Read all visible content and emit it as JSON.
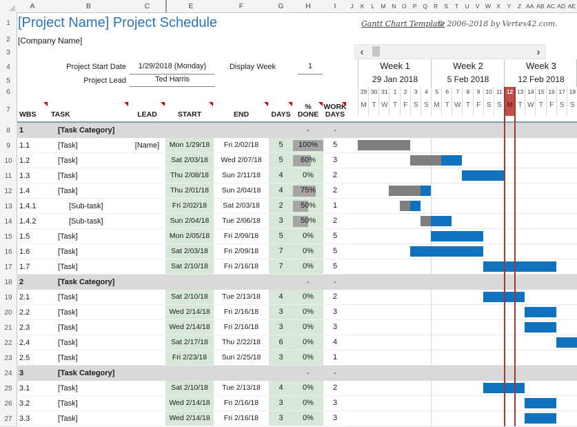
{
  "title": "[Project Name] Project Schedule",
  "company": "[Company Name]",
  "template_link": "Gantt Chart Template",
  "copyright": "© 2006-2018 by Vertex42.com.",
  "fields": {
    "start_label": "Project Start Date",
    "start_value": "1/29/2018 (Monday)",
    "lead_label": "Project Lead",
    "lead_value": "Ted Harris",
    "display_week_label": "Display Week",
    "display_week_value": "1"
  },
  "scrollbar": {
    "left_arrow": "‹",
    "right_arrow": "›"
  },
  "sheet": {
    "col_headers": [
      "A",
      "B",
      "C",
      "E",
      "F",
      "G",
      "H",
      "I"
    ],
    "day_col_headers": [
      "J",
      "K",
      "L",
      "M",
      "N",
      "O",
      "P",
      "Q",
      "R",
      "S",
      "T",
      "U",
      "V",
      "W",
      "X",
      "Y",
      "Z",
      "AA",
      "AB",
      "AC",
      "AD",
      "AE"
    ],
    "row_numbers": [
      1,
      2,
      3,
      4,
      5,
      6,
      7,
      8,
      9,
      10,
      11,
      12,
      13,
      14,
      15,
      16,
      17,
      18,
      19,
      20,
      21,
      22,
      23,
      24,
      25,
      26,
      27
    ]
  },
  "table": {
    "columns": [
      "WBS",
      "TASK",
      "LEAD",
      "START",
      "END",
      "DAYS",
      "% DONE",
      "WORK DAYS"
    ]
  },
  "weeks": [
    {
      "label": "Week 1",
      "date": "29 Jan 2018"
    },
    {
      "label": "Week 2",
      "date": "5 Feb 2018"
    },
    {
      "label": "Week 3",
      "date": "12 Feb 2018"
    }
  ],
  "calendar": {
    "day_numbers": [
      29,
      30,
      31,
      1,
      2,
      3,
      4,
      5,
      6,
      7,
      8,
      9,
      10,
      11,
      12,
      13,
      14,
      15,
      16,
      17,
      18
    ],
    "day_letters": [
      "M",
      "T",
      "W",
      "T",
      "F",
      "S",
      "S",
      "M",
      "T",
      "W",
      "T",
      "F",
      "S",
      "S",
      "M",
      "T",
      "W",
      "T",
      "F",
      "S",
      "S"
    ],
    "today_index": 14
  },
  "tasks": [
    {
      "row": 8,
      "wbs": "1",
      "name": "[Task Category]",
      "type": "category",
      "lead": "",
      "start": "",
      "end": "",
      "days": "",
      "done": "-",
      "workdays": "-"
    },
    {
      "row": 9,
      "wbs": "1.1",
      "name": "[Task]",
      "type": "task",
      "lead": "[Name]",
      "start": "Mon 1/29/18",
      "end": "Fri 2/02/18",
      "days": "5",
      "done": "100%",
      "workdays": "5",
      "bar": {
        "start": 0,
        "len": 5,
        "frac": 1
      }
    },
    {
      "row": 10,
      "wbs": "1.2",
      "name": "[Task]",
      "type": "task",
      "lead": "",
      "start": "Sat 2/03/18",
      "end": "Wed 2/07/18",
      "days": "5",
      "done": "60%",
      "workdays": "3",
      "bar": {
        "start": 5,
        "len": 5,
        "frac": 0.6
      }
    },
    {
      "row": 11,
      "wbs": "1.3",
      "name": "[Task]",
      "type": "task",
      "lead": "",
      "start": "Thu 2/08/18",
      "end": "Sun 2/11/18",
      "days": "4",
      "done": "0%",
      "workdays": "2",
      "bar": {
        "start": 10,
        "len": 4,
        "frac": 0
      }
    },
    {
      "row": 12,
      "wbs": "1.4",
      "name": "[Task]",
      "type": "task",
      "lead": "",
      "start": "Thu 2/01/18",
      "end": "Sun 2/04/18",
      "days": "4",
      "done": "75%",
      "workdays": "2",
      "bar": {
        "start": 3,
        "len": 4,
        "frac": 0.75
      }
    },
    {
      "row": 13,
      "wbs": "1.4.1",
      "name": "[Sub-task]",
      "type": "subtask",
      "lead": "",
      "start": "Fri 2/02/18",
      "end": "Sat 2/03/18",
      "days": "2",
      "done": "50%",
      "workdays": "1",
      "bar": {
        "start": 4,
        "len": 2,
        "frac": 0.5
      }
    },
    {
      "row": 14,
      "wbs": "1.4.2",
      "name": "[Sub-task]",
      "type": "subtask",
      "lead": "",
      "start": "Sun 2/04/18",
      "end": "Tue 2/06/18",
      "days": "3",
      "done": "50%",
      "workdays": "2",
      "bar": {
        "start": 6,
        "len": 3,
        "frac": 0.33
      }
    },
    {
      "row": 15,
      "wbs": "1.5",
      "name": "[Task]",
      "type": "task",
      "lead": "",
      "start": "Mon 2/05/18",
      "end": "Fri 2/09/18",
      "days": "5",
      "done": "0%",
      "workdays": "5",
      "bar": {
        "start": 7,
        "len": 5,
        "frac": 0
      }
    },
    {
      "row": 16,
      "wbs": "1.6",
      "name": "[Task]",
      "type": "task",
      "lead": "",
      "start": "Sat 2/03/18",
      "end": "Fri 2/09/18",
      "days": "7",
      "done": "0%",
      "workdays": "5",
      "bar": {
        "start": 5,
        "len": 7,
        "frac": 0
      }
    },
    {
      "row": 17,
      "wbs": "1.7",
      "name": "[Task]",
      "type": "task",
      "lead": "",
      "start": "Sat 2/10/18",
      "end": "Fri 2/16/18",
      "days": "7",
      "done": "0%",
      "workdays": "5",
      "bar": {
        "start": 12,
        "len": 7,
        "frac": 0
      }
    },
    {
      "row": 18,
      "wbs": "2",
      "name": "[Task Category]",
      "type": "category",
      "lead": "",
      "start": "",
      "end": "",
      "days": "",
      "done": "-",
      "workdays": "-"
    },
    {
      "row": 19,
      "wbs": "2.1",
      "name": "[Task]",
      "type": "task",
      "lead": "",
      "start": "Sat 2/10/18",
      "end": "Tue 2/13/18",
      "days": "4",
      "done": "0%",
      "workdays": "2",
      "bar": {
        "start": 12,
        "len": 4,
        "frac": 0
      }
    },
    {
      "row": 20,
      "wbs": "2.2",
      "name": "[Task]",
      "type": "task",
      "lead": "",
      "start": "Wed 2/14/18",
      "end": "Fri 2/16/18",
      "days": "3",
      "done": "0%",
      "workdays": "3",
      "bar": {
        "start": 16,
        "len": 3,
        "frac": 0
      }
    },
    {
      "row": 21,
      "wbs": "2.3",
      "name": "[Task]",
      "type": "task",
      "lead": "",
      "start": "Wed 2/14/18",
      "end": "Fri 2/16/18",
      "days": "3",
      "done": "0%",
      "workdays": "3",
      "bar": {
        "start": 16,
        "len": 3,
        "frac": 0
      }
    },
    {
      "row": 22,
      "wbs": "2.4",
      "name": "[Task]",
      "type": "task",
      "lead": "",
      "start": "Sat 2/17/18",
      "end": "Thu 2/22/18",
      "days": "6",
      "done": "0%",
      "workdays": "4",
      "bar": {
        "start": 19,
        "len": 6,
        "frac": 0
      }
    },
    {
      "row": 23,
      "wbs": "2.5",
      "name": "[Task]",
      "type": "task",
      "lead": "",
      "start": "Fri 2/23/18",
      "end": "Sun 2/25/18",
      "days": "3",
      "done": "0%",
      "workdays": "1",
      "bar": {
        "start": 25,
        "len": 3,
        "frac": 0
      }
    },
    {
      "row": 24,
      "wbs": "3",
      "name": "[Task Category]",
      "type": "category",
      "lead": "",
      "start": "",
      "end": "",
      "days": "",
      "done": "-",
      "workdays": "-"
    },
    {
      "row": 25,
      "wbs": "3.1",
      "name": "[Task]",
      "type": "task",
      "lead": "",
      "start": "Sat 2/10/18",
      "end": "Tue 2/13/18",
      "days": "4",
      "done": "0%",
      "workdays": "2",
      "bar": {
        "start": 12,
        "len": 4,
        "frac": 0
      }
    },
    {
      "row": 26,
      "wbs": "3.2",
      "name": "[Task]",
      "type": "task",
      "lead": "",
      "start": "Wed 2/14/18",
      "end": "Fri 2/16/18",
      "days": "3",
      "done": "0%",
      "workdays": "3",
      "bar": {
        "start": 16,
        "len": 3,
        "frac": 0
      }
    },
    {
      "row": 27,
      "wbs": "3.3",
      "name": "[Task]",
      "type": "task",
      "lead": "",
      "start": "Wed 2/14/18",
      "end": "Fri 2/16/18",
      "days": "3",
      "done": "0%",
      "workdays": "3",
      "bar": {
        "start": 16,
        "len": 3,
        "frac": 0
      }
    }
  ],
  "colors": {
    "title_blue": "#2e74b5",
    "bar_blue": "#0e72be",
    "bar_gray": "#7f7f7f",
    "databar_gray": "#a5a5a5",
    "green_cell": "#d8e8d8",
    "category_bg": "#d9d9d9",
    "today_red": "#bf4e4b",
    "today_line": "#a93531",
    "comment_red": "#c00000"
  }
}
